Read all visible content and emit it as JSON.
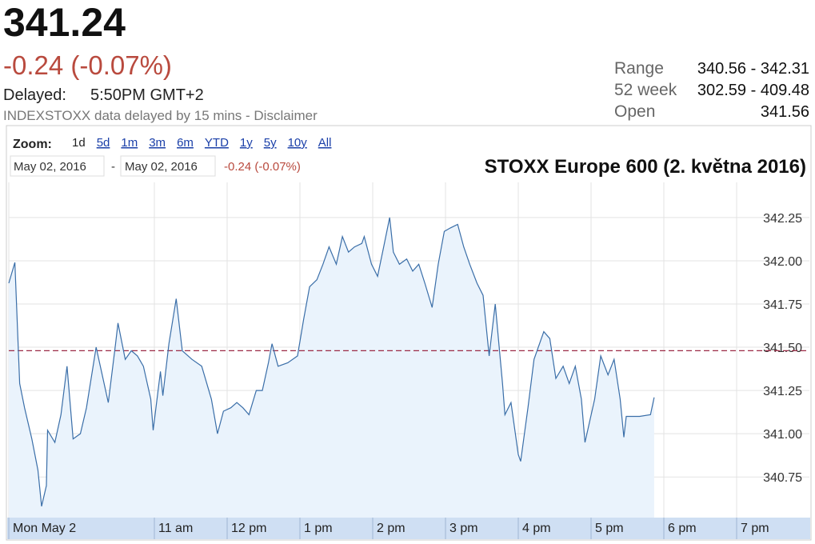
{
  "header": {
    "price": "341.24",
    "change": "-0.24 (-0.07%)",
    "delayed_label": "Delayed:",
    "delayed_time": "5:50PM GMT+2",
    "disclaimer": "INDEXSTOXX data delayed by 15 mins - Disclaimer"
  },
  "stats": [
    {
      "label": "Range",
      "value": "340.56 - 342.31"
    },
    {
      "label": "52 week",
      "value": "302.59 - 409.48"
    },
    {
      "label": "Open",
      "value": "341.56"
    }
  ],
  "controls": {
    "zoom_label": "Zoom:",
    "zoom_options": [
      "1d",
      "5d",
      "1m",
      "3m",
      "6m",
      "YTD",
      "1y",
      "5y",
      "10y",
      "All"
    ],
    "start_date": "May 02, 2016",
    "separator": "-",
    "end_date": "May 02, 2016",
    "period_change": "-0.24 (-0.07%)"
  },
  "chart_data": {
    "type": "area",
    "title": "STOXX Europe 600 (2. května 2016)",
    "color": "#3a6ea8",
    "fill": "#eaf3fc",
    "grid": true,
    "reference_line": 341.48,
    "reference_color": "#9b2a45",
    "x": [
      "09:00",
      "09:05",
      "09:09",
      "09:13",
      "09:19",
      "09:24",
      "09:27",
      "09:31",
      "09:32",
      "09:38",
      "09:43",
      "09:48",
      "09:53",
      "09:59",
      "10:04",
      "10:12",
      "10:17",
      "10:22",
      "10:28",
      "10:30",
      "10:36",
      "10:41",
      "10:46",
      "10:51",
      "10:57",
      "10:59",
      "11:05",
      "11:07",
      "11:12",
      "11:18",
      "11:23",
      "11:31",
      "11:39",
      "11:47",
      "11:52",
      "11:57",
      "12:03",
      "12:08",
      "12:13",
      "12:18",
      "12:24",
      "12:29",
      "12:34",
      "12:37",
      "12:42",
      "12:50",
      "12:58",
      "13:03",
      "13:08",
      "13:14",
      "13:19",
      "13:24",
      "13:30",
      "13:35",
      "13:40",
      "13:45",
      "13:51",
      "13:53",
      "13:59",
      "14:04",
      "14:09",
      "14:14",
      "14:17",
      "14:22",
      "14:28",
      "14:33",
      "14:38",
      "14:43",
      "14:49",
      "14:54",
      "14:59",
      "15:04",
      "15:10",
      "15:15",
      "15:20",
      "15:26",
      "15:31",
      "15:36",
      "15:41",
      "15:47",
      "15:49",
      "15:54",
      "16:00",
      "16:02",
      "16:08",
      "16:13",
      "16:21",
      "16:26",
      "16:31",
      "16:37",
      "16:42",
      "16:47",
      "16:52",
      "16:55",
      "17:03",
      "17:08",
      "17:14",
      "17:19",
      "17:24",
      "17:27",
      "17:29",
      "17:40",
      "17:49",
      "17:52"
    ],
    "values": [
      341.87,
      341.99,
      341.29,
      341.15,
      340.97,
      340.79,
      340.58,
      340.7,
      341.02,
      340.95,
      341.11,
      341.39,
      340.97,
      341.0,
      341.15,
      341.5,
      341.34,
      341.18,
      341.52,
      341.64,
      341.43,
      341.48,
      341.45,
      341.39,
      341.2,
      341.02,
      341.36,
      341.22,
      341.52,
      341.78,
      341.48,
      341.43,
      341.39,
      341.2,
      341.0,
      341.13,
      341.15,
      341.18,
      341.15,
      341.11,
      341.25,
      341.25,
      341.41,
      341.52,
      341.39,
      341.41,
      341.45,
      341.66,
      341.85,
      341.89,
      341.98,
      342.08,
      341.98,
      342.14,
      342.05,
      342.08,
      342.1,
      342.14,
      341.98,
      341.91,
      342.08,
      342.25,
      342.05,
      341.98,
      342.01,
      341.94,
      341.98,
      341.87,
      341.73,
      341.98,
      342.17,
      342.19,
      342.21,
      342.08,
      341.98,
      341.87,
      341.8,
      341.45,
      341.75,
      341.29,
      341.11,
      341.18,
      340.88,
      340.84,
      341.15,
      341.43,
      341.59,
      341.55,
      341.32,
      341.39,
      341.29,
      341.39,
      341.2,
      340.95,
      341.2,
      341.45,
      341.34,
      341.43,
      341.2,
      340.98,
      341.1,
      341.1,
      341.11,
      341.21
    ],
    "xlim": [
      "09:00",
      "20:00"
    ],
    "xticks": [
      {
        "value": "09:00",
        "label": "Mon May 2"
      },
      {
        "value": "11:00",
        "label": "11 am"
      },
      {
        "value": "12:00",
        "label": "12 pm"
      },
      {
        "value": "13:00",
        "label": "1 pm"
      },
      {
        "value": "14:00",
        "label": "2 pm"
      },
      {
        "value": "15:00",
        "label": "3 pm"
      },
      {
        "value": "16:00",
        "label": "4 pm"
      },
      {
        "value": "17:00",
        "label": "5 pm"
      },
      {
        "value": "18:00",
        "label": "6 pm"
      },
      {
        "value": "19:00",
        "label": "7 pm"
      }
    ],
    "ylim": [
      340.515,
      342.453
    ],
    "yticks": [
      {
        "value": 340.75,
        "label": "340.75"
      },
      {
        "value": 341,
        "label": "341.00"
      },
      {
        "value": 341.25,
        "label": "341.25"
      },
      {
        "value": 341.5,
        "label": "341.50"
      },
      {
        "value": 341.75,
        "label": "341.75"
      },
      {
        "value": 342,
        "label": "342.00"
      },
      {
        "value": 342.25,
        "label": "342.25"
      }
    ]
  }
}
